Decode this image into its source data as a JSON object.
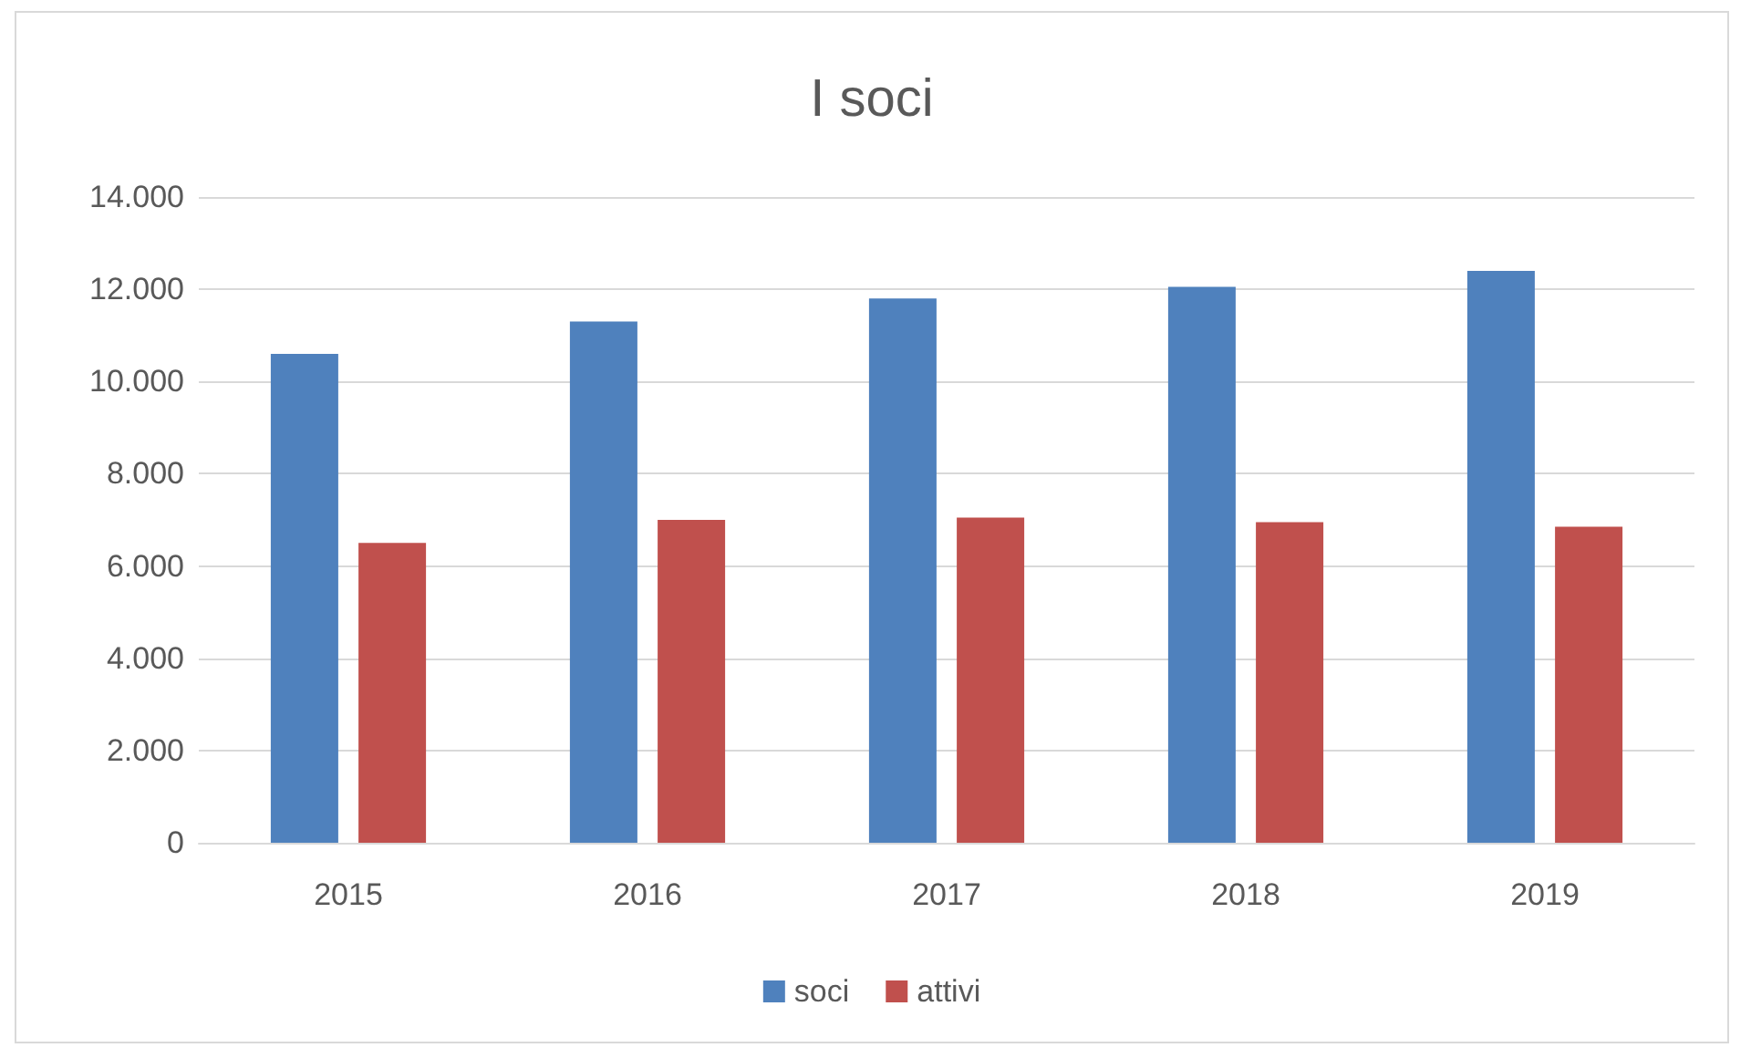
{
  "chart_data": {
    "type": "bar",
    "title": "I soci",
    "categories": [
      "2015",
      "2016",
      "2017",
      "2018",
      "2019"
    ],
    "series": [
      {
        "name": "soci",
        "color": "#4f81bd",
        "values": [
          10600,
          11300,
          11800,
          12050,
          12400
        ]
      },
      {
        "name": "attivi",
        "color": "#c0504d",
        "values": [
          6500,
          7000,
          7050,
          6950,
          6850
        ]
      }
    ],
    "ylim": [
      0,
      14000
    ],
    "yticks": [
      {
        "value": 0,
        "label": "0"
      },
      {
        "value": 2000,
        "label": "2.000"
      },
      {
        "value": 4000,
        "label": "4.000"
      },
      {
        "value": 6000,
        "label": "6.000"
      },
      {
        "value": 8000,
        "label": "8.000"
      },
      {
        "value": 10000,
        "label": "10.000"
      },
      {
        "value": 12000,
        "label": "12.000"
      },
      {
        "value": 14000,
        "label": "14.000"
      }
    ],
    "grid": "y",
    "legend": "bottom"
  }
}
